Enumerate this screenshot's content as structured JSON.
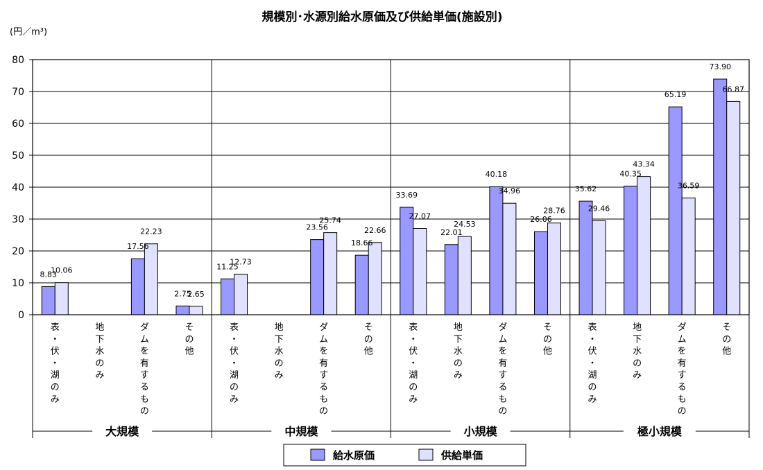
{
  "chart_data": {
    "type": "bar",
    "title": "規模別･水源別給水原価及び供給単価(施設別)",
    "unit_label": "(円／m³)",
    "ylim": [
      0,
      80
    ],
    "yticks": [
      "0",
      "10",
      "20",
      "30",
      "40",
      "50",
      "60",
      "70",
      "80"
    ],
    "grid": true,
    "legend_position": "bottom",
    "groups": [
      {
        "name": "大規模",
        "categories": [
          "表・伏・湖のみ",
          "地下水のみ",
          "ダムを有するもの",
          "その他"
        ]
      },
      {
        "name": "中規模",
        "categories": [
          "表・伏・湖のみ",
          "地下水のみ",
          "ダムを有するもの",
          "その他"
        ]
      },
      {
        "name": "小規模",
        "categories": [
          "表・伏・湖のみ",
          "地下水のみ",
          "ダムを有するもの",
          "その他"
        ]
      },
      {
        "name": "極小規模",
        "categories": [
          "表・伏・湖のみ",
          "地下水のみ",
          "ダムを有するもの",
          "その他"
        ]
      }
    ],
    "series": [
      {
        "name": "給水原価",
        "color": "#9999ff",
        "values": [
          8.83,
          null,
          17.56,
          2.75,
          11.25,
          null,
          23.56,
          18.66,
          33.69,
          22.01,
          40.18,
          26.06,
          35.62,
          40.35,
          65.19,
          73.9
        ],
        "labels": [
          "8.83",
          "",
          "17.56",
          "2.75",
          "11.25",
          "",
          "23.56",
          "18.66",
          "33.69",
          "22.01",
          "40.18",
          "26.06",
          "35.62",
          "40.35",
          "65.19",
          "73.90"
        ]
      },
      {
        "name": "供給単価",
        "color": "#e0e0ff",
        "values": [
          10.06,
          null,
          22.23,
          2.65,
          12.73,
          null,
          25.74,
          22.66,
          27.07,
          24.53,
          34.96,
          28.76,
          29.46,
          43.34,
          36.59,
          66.87
        ],
        "labels": [
          "10.06",
          "",
          "22.23",
          "2.65",
          "12.73",
          "",
          "25.74",
          "22.66",
          "27.07",
          "24.53",
          "34.96",
          "28.76",
          "29.46",
          "43.34",
          "36.59",
          "66.87"
        ]
      }
    ]
  }
}
